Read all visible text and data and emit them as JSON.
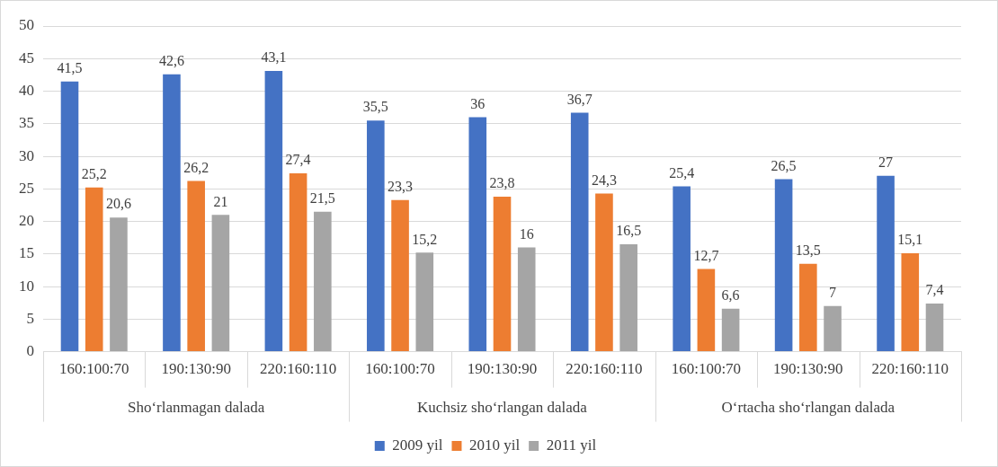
{
  "chart_data": {
    "type": "bar",
    "categories": [
      "160:100:70",
      "190:130:90",
      "220:160:110",
      "160:100:70",
      "190:130:90",
      "220:160:110",
      "160:100:70",
      "190:130:90",
      "220:160:110"
    ],
    "series": [
      {
        "name": "2009 yil",
        "color": "#4472c4",
        "values": [
          41.5,
          42.6,
          43.1,
          35.5,
          36,
          36.7,
          25.4,
          26.5,
          27
        ],
        "value_labels": [
          "41,5",
          "42,6",
          "43,1",
          "35,5",
          "36",
          "36,7",
          "25,4",
          "26,5",
          "27"
        ]
      },
      {
        "name": "2010 yil",
        "color": "#ed7d31",
        "values": [
          25.2,
          26.2,
          27.4,
          23.3,
          23.8,
          24.3,
          12.7,
          13.5,
          15.1
        ],
        "value_labels": [
          "25,2",
          "26,2",
          "27,4",
          "23,3",
          "23,8",
          "24,3",
          "12,7",
          "13,5",
          "15,1"
        ]
      },
      {
        "name": "2011 yil",
        "color": "#a5a5a5",
        "values": [
          20.6,
          21,
          21.5,
          15.2,
          16,
          16.5,
          6.6,
          7,
          7.4
        ],
        "value_labels": [
          "20,6",
          "21",
          "21,5",
          "15,2",
          "16",
          "16,5",
          "6,6",
          "7",
          "7,4"
        ]
      }
    ],
    "annotations": [
      "Sho‘rlanmagan dalada",
      "Kuchsiz sho‘rlangan dalada",
      "O‘rtacha sho‘rlangan dalada"
    ],
    "ylim": [
      0,
      50
    ],
    "yticks": [
      0,
      5,
      10,
      15,
      20,
      25,
      30,
      35,
      40,
      45,
      50
    ],
    "grid": "y",
    "legend": "bottom"
  }
}
